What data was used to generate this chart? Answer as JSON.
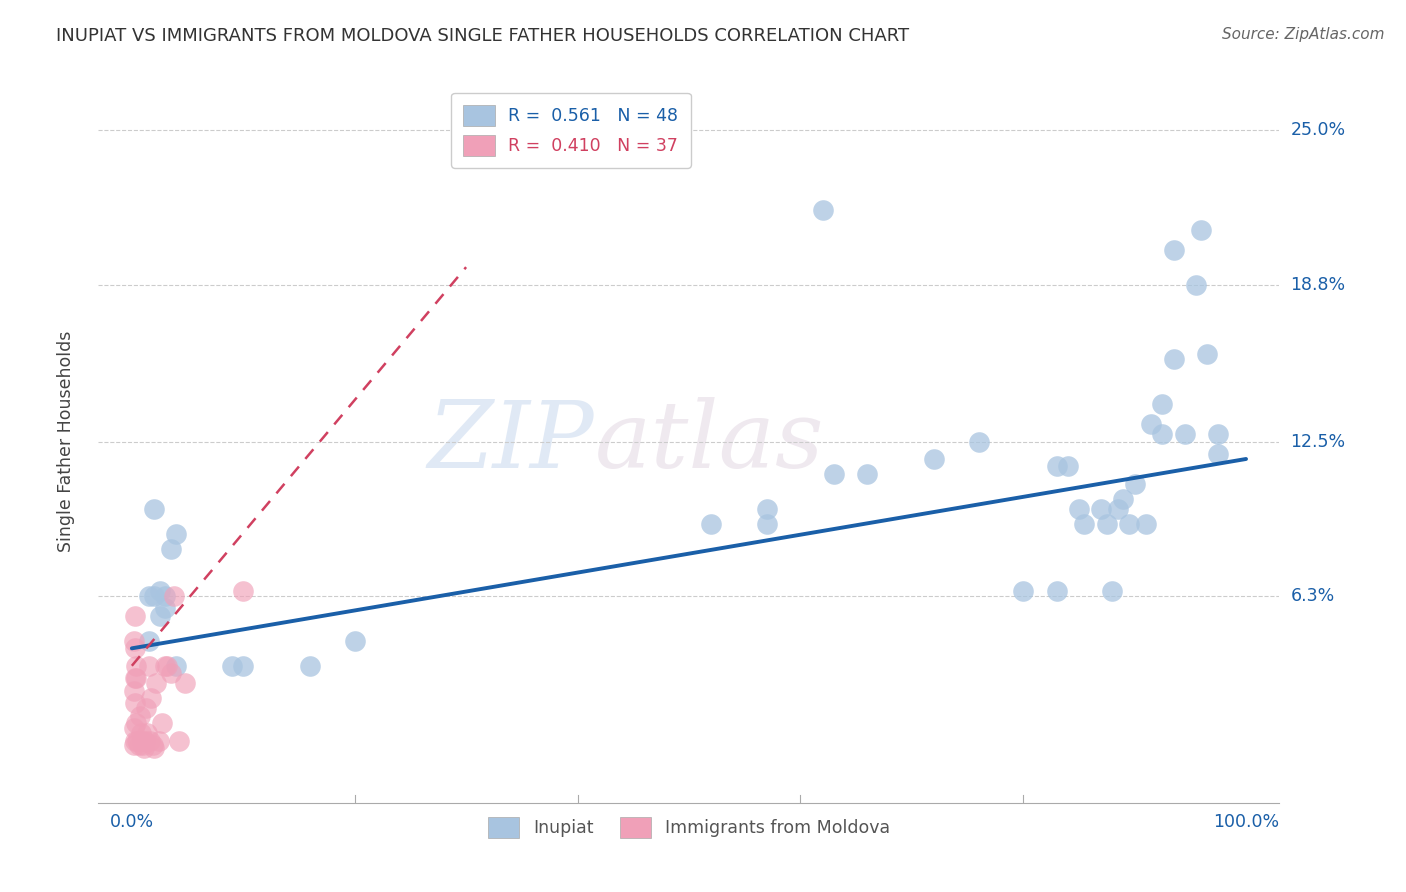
{
  "title": "INUPIAT VS IMMIGRANTS FROM MOLDOVA SINGLE FATHER HOUSEHOLDS CORRELATION CHART",
  "source": "Source: ZipAtlas.com",
  "ylabel": "Single Father Households",
  "ytick_labels": [
    "6.3%",
    "12.5%",
    "18.8%",
    "25.0%"
  ],
  "ytick_values": [
    6.3,
    12.5,
    18.8,
    25.0
  ],
  "xlim": [
    0,
    100
  ],
  "ylim": [
    -2,
    27
  ],
  "watermark_zip": "ZIP",
  "watermark_atlas": "atlas",
  "inupiat_color": "#a8c4e0",
  "moldova_color": "#f0a0b8",
  "inupiat_line_color": "#1a5fa8",
  "moldova_line_color": "#d04060",
  "inupiat_scatter": [
    [
      2.0,
      9.8
    ],
    [
      3.5,
      8.2
    ],
    [
      4.0,
      8.8
    ],
    [
      2.5,
      6.5
    ],
    [
      3.0,
      6.3
    ],
    [
      1.5,
      6.3
    ],
    [
      2.0,
      6.3
    ],
    [
      2.5,
      5.5
    ],
    [
      3.0,
      5.8
    ],
    [
      1.5,
      4.5
    ],
    [
      4.0,
      3.5
    ],
    [
      9.0,
      3.5
    ],
    [
      10.0,
      3.5
    ],
    [
      16.0,
      3.5
    ],
    [
      20.0,
      4.5
    ],
    [
      52.0,
      9.2
    ],
    [
      57.0,
      9.2
    ],
    [
      57.0,
      9.8
    ],
    [
      63.0,
      11.2
    ],
    [
      66.0,
      11.2
    ],
    [
      72.0,
      11.8
    ],
    [
      76.0,
      12.5
    ],
    [
      80.0,
      6.5
    ],
    [
      83.0,
      6.5
    ],
    [
      84.0,
      11.5
    ],
    [
      85.0,
      9.8
    ],
    [
      87.0,
      9.8
    ],
    [
      87.5,
      9.2
    ],
    [
      88.5,
      9.8
    ],
    [
      89.0,
      10.2
    ],
    [
      89.5,
      9.2
    ],
    [
      90.0,
      10.8
    ],
    [
      91.0,
      9.2
    ],
    [
      91.5,
      13.2
    ],
    [
      92.5,
      14.0
    ],
    [
      92.5,
      12.8
    ],
    [
      93.5,
      15.8
    ],
    [
      94.5,
      12.8
    ],
    [
      95.5,
      18.8
    ],
    [
      96.5,
      16.0
    ],
    [
      97.5,
      12.8
    ],
    [
      97.5,
      12.0
    ],
    [
      62.0,
      21.8
    ],
    [
      93.5,
      20.2
    ],
    [
      96.0,
      21.0
    ],
    [
      83.0,
      11.5
    ],
    [
      85.5,
      9.2
    ],
    [
      88.0,
      6.5
    ]
  ],
  "moldova_scatter": [
    [
      0.3,
      0.5
    ],
    [
      0.4,
      1.2
    ],
    [
      0.5,
      0.5
    ],
    [
      0.6,
      0.3
    ],
    [
      0.7,
      1.5
    ],
    [
      0.8,
      0.8
    ],
    [
      0.9,
      0.5
    ],
    [
      1.0,
      0.3
    ],
    [
      1.1,
      0.2
    ],
    [
      1.2,
      0.5
    ],
    [
      1.3,
      1.8
    ],
    [
      1.4,
      0.8
    ],
    [
      1.6,
      0.5
    ],
    [
      1.7,
      2.2
    ],
    [
      1.9,
      0.3
    ],
    [
      2.2,
      2.8
    ],
    [
      2.4,
      0.5
    ],
    [
      2.7,
      1.2
    ],
    [
      3.2,
      3.5
    ],
    [
      3.5,
      3.2
    ],
    [
      3.8,
      6.3
    ],
    [
      4.2,
      0.5
    ],
    [
      4.8,
      2.8
    ],
    [
      0.2,
      4.5
    ],
    [
      0.25,
      4.2
    ],
    [
      0.3,
      5.5
    ],
    [
      0.35,
      3.5
    ],
    [
      0.4,
      3.0
    ],
    [
      0.2,
      0.3
    ],
    [
      0.2,
      1.0
    ],
    [
      0.3,
      2.0
    ],
    [
      0.3,
      3.0
    ],
    [
      0.2,
      2.5
    ],
    [
      1.5,
      3.5
    ],
    [
      2.0,
      0.2
    ],
    [
      3.0,
      3.5
    ],
    [
      10.0,
      6.5
    ]
  ],
  "inupiat_R": 0.561,
  "inupiat_N": 48,
  "moldova_R": 0.41,
  "moldova_N": 37,
  "inupiat_trend": [
    0.0,
    100.0,
    4.2,
    11.8
  ],
  "moldova_trend": [
    0.0,
    30.0,
    3.5,
    19.5
  ]
}
